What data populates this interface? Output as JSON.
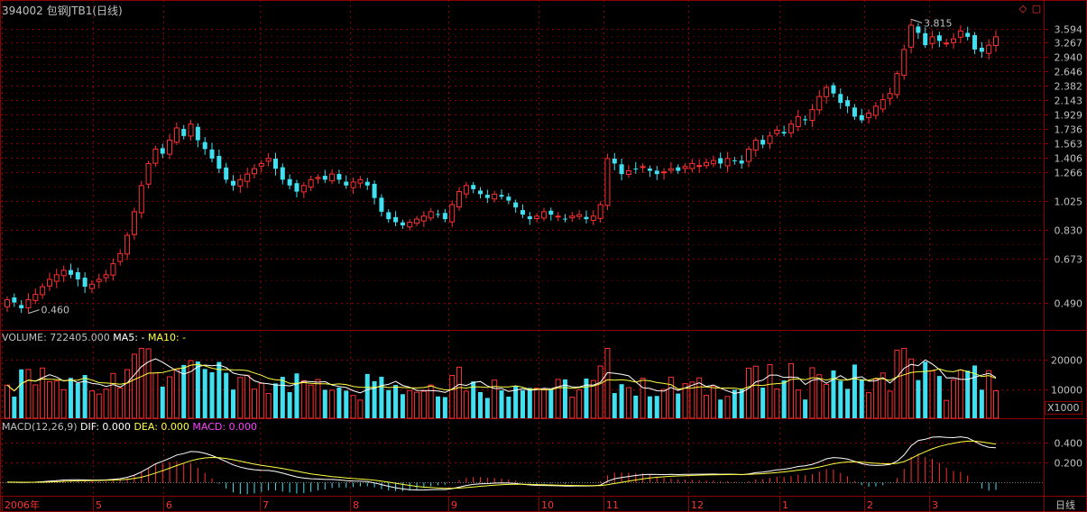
{
  "window": {
    "title": "394002 包钢JTB1(日线)"
  },
  "panels": {
    "volume": {
      "label": "VOLUME:",
      "value": "722405.000",
      "ma5": "MA5: -",
      "ma10": "MA10: -",
      "unit": "X1000"
    },
    "macd": {
      "label": "MACD(12,26,9)",
      "dif": "DIF: 0.000",
      "dea": "DEA: 0.000",
      "macd": "MACD: 0.000"
    }
  },
  "period_label": "日线",
  "icons": [
    "diamond-icon",
    "restore-window-icon"
  ],
  "colors": {
    "up": "#ff3030",
    "down": "#40e0f0",
    "grid": "#8b0000",
    "ma5": "#ffffff",
    "ma10": "#ffff40",
    "dea": "#ffff40",
    "macd_label": "#ff40ff"
  },
  "chart_data": [
    {
      "type": "candlestick",
      "panel": "price",
      "scale": "log",
      "y_ticks": [
        3.594,
        3.267,
        2.94,
        2.646,
        2.382,
        2.143,
        1.929,
        1.736,
        1.563,
        1.406,
        1.266,
        1.025,
        0.83,
        0.673,
        0.49
      ],
      "x_labels": [
        "2006年",
        "5",
        "6",
        "7",
        "8",
        "9",
        "10",
        "11",
        "12",
        "1",
        "2",
        "3"
      ],
      "annotations": [
        {
          "text": "3.815",
          "kind": "high"
        },
        {
          "text": "0.460",
          "kind": "low"
        }
      ],
      "close_series": [
        0.5,
        0.49,
        0.47,
        0.5,
        0.52,
        0.55,
        0.58,
        0.6,
        0.62,
        0.6,
        0.58,
        0.55,
        0.56,
        0.58,
        0.6,
        0.65,
        0.7,
        0.8,
        0.95,
        1.15,
        1.35,
        1.5,
        1.45,
        1.6,
        1.75,
        1.65,
        1.8,
        1.6,
        1.5,
        1.4,
        1.3,
        1.2,
        1.15,
        1.2,
        1.25,
        1.3,
        1.35,
        1.4,
        1.3,
        1.2,
        1.15,
        1.1,
        1.15,
        1.2,
        1.22,
        1.2,
        1.25,
        1.2,
        1.15,
        1.18,
        1.2,
        1.15,
        1.05,
        0.95,
        0.9,
        0.88,
        0.86,
        0.88,
        0.9,
        0.92,
        0.95,
        0.93,
        0.9,
        1.0,
        1.1,
        1.15,
        1.12,
        1.08,
        1.05,
        1.08,
        1.06,
        1.03,
        0.98,
        0.93,
        0.9,
        0.92,
        0.95,
        0.93,
        0.92,
        0.9,
        0.92,
        0.93,
        0.9,
        0.92,
        1.0,
        1.4,
        1.35,
        1.25,
        1.28,
        1.3,
        1.32,
        1.28,
        1.25,
        1.27,
        1.3,
        1.28,
        1.32,
        1.35,
        1.33,
        1.36,
        1.38,
        1.35,
        1.4,
        1.38,
        1.35,
        1.5,
        1.6,
        1.55,
        1.65,
        1.72,
        1.68,
        1.8,
        1.9,
        1.85,
        2.0,
        2.2,
        2.35,
        2.25,
        2.1,
        2.05,
        1.9,
        1.85,
        1.95,
        2.05,
        2.15,
        2.25,
        2.6,
        3.1,
        3.7,
        3.5,
        3.2,
        3.4,
        3.3,
        3.25,
        3.35,
        3.55,
        3.4,
        3.1,
        3.05,
        3.2,
        3.4
      ]
    },
    {
      "type": "bar",
      "panel": "volume",
      "y_ticks": [
        20000,
        10000
      ],
      "unit": "X1000"
    },
    {
      "type": "line",
      "panel": "macd",
      "y_ticks": [
        0.4,
        0.2
      ],
      "series": [
        {
          "name": "DIF"
        },
        {
          "name": "DEA"
        },
        {
          "name": "MACD"
        }
      ]
    }
  ]
}
